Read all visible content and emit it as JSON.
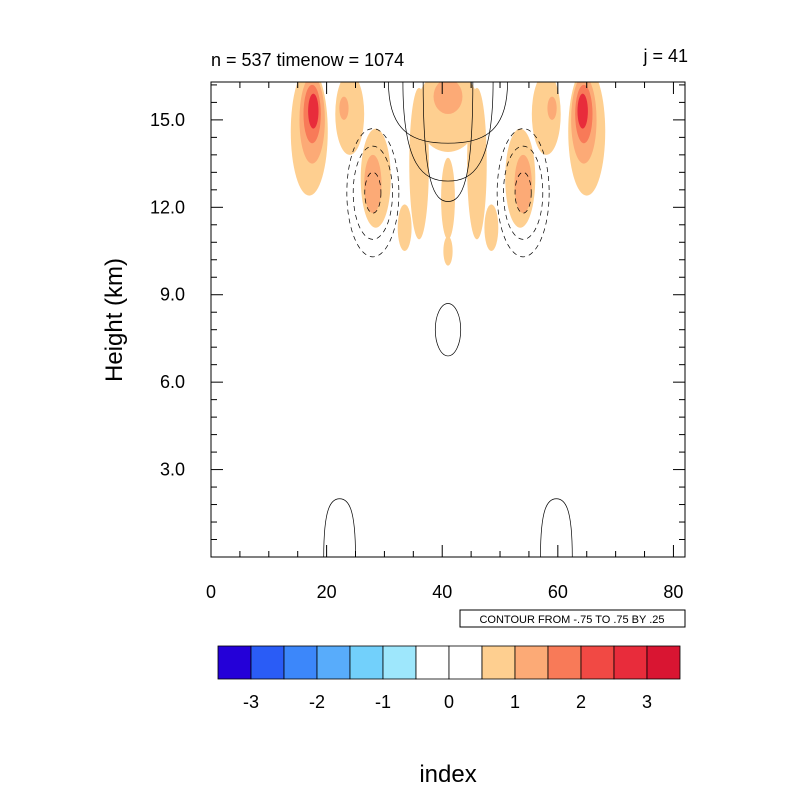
{
  "chart_data": {
    "type": "contour",
    "title_left": "n = 537 timenow = 1074",
    "title_right": "j = 41",
    "ylabel": "Height (km)",
    "xlabel": "index",
    "xlim": [
      0,
      82
    ],
    "ylim": [
      0,
      16.3
    ],
    "x_ticks": [
      0,
      20,
      40,
      60,
      80
    ],
    "x_tick_labels": [
      "0",
      "20",
      "40",
      "60",
      "80"
    ],
    "y_ticks": [
      3.0,
      6.0,
      9.0,
      12.0,
      15.0
    ],
    "y_tick_labels": [
      "3.0",
      "6.0",
      "9.0",
      "12.0",
      "15.0"
    ],
    "contour_note": "CONTOUR FROM -.75 TO .75 BY .25",
    "colorbar": {
      "colors": [
        "#2400d8",
        "#2a5cf6",
        "#3c87fa",
        "#58acfb",
        "#72d0fb",
        "#9ee7fc",
        "#ffffff",
        "#ffffff",
        "#fecf90",
        "#fcaa76",
        "#f87a58",
        "#f14944",
        "#e82c3b",
        "#d91532"
      ],
      "labels": [
        "-3",
        "-2",
        "-1",
        "0",
        "1",
        "2",
        "3"
      ]
    },
    "filled_regions": [
      {
        "level": 1,
        "color": "#fecf90",
        "shape": "ellipse",
        "cx": 17,
        "cy": 14.6,
        "rx": 3.2,
        "ry": 2.2
      },
      {
        "level": 1,
        "color": "#fecf90",
        "shape": "ellipse",
        "cx": 65,
        "cy": 14.6,
        "rx": 3.2,
        "ry": 2.2
      },
      {
        "level": 1,
        "color": "#fecf90",
        "shape": "ellipse",
        "cx": 24,
        "cy": 15.2,
        "rx": 2.5,
        "ry": 1.4
      },
      {
        "level": 1,
        "color": "#fecf90",
        "shape": "ellipse",
        "cx": 58,
        "cy": 15.2,
        "rx": 2.5,
        "ry": 1.4
      },
      {
        "level": 1,
        "color": "#fecf90",
        "shape": "ellipse",
        "cx": 28.5,
        "cy": 13.0,
        "rx": 2.6,
        "ry": 1.7
      },
      {
        "level": 1,
        "color": "#fecf90",
        "shape": "ellipse",
        "cx": 53.5,
        "cy": 13.0,
        "rx": 2.6,
        "ry": 1.7
      },
      {
        "level": 1,
        "color": "#fecf90",
        "shape": "ellipse",
        "cx": 36,
        "cy": 13.5,
        "rx": 1.7,
        "ry": 2.6
      },
      {
        "level": 1,
        "color": "#fecf90",
        "shape": "ellipse",
        "cx": 46,
        "cy": 13.5,
        "rx": 1.7,
        "ry": 2.6
      },
      {
        "level": 1,
        "color": "#fecf90",
        "shape": "ellipse",
        "cx": 41,
        "cy": 15.3,
        "rx": 5.5,
        "ry": 1.4
      },
      {
        "level": 1,
        "color": "#fecf90",
        "shape": "ellipse",
        "cx": 41,
        "cy": 12.3,
        "rx": 1.2,
        "ry": 1.4
      },
      {
        "level": 1,
        "color": "#fecf90",
        "shape": "ellipse",
        "cx": 41,
        "cy": 10.5,
        "rx": 0.8,
        "ry": 0.5
      },
      {
        "level": 1,
        "color": "#fecf90",
        "shape": "ellipse",
        "cx": 33.5,
        "cy": 11.3,
        "rx": 1.2,
        "ry": 0.8
      },
      {
        "level": 1,
        "color": "#fecf90",
        "shape": "ellipse",
        "cx": 48.5,
        "cy": 11.3,
        "rx": 1.2,
        "ry": 0.8
      },
      {
        "level": 2,
        "color": "#fcaa76",
        "shape": "ellipse",
        "cx": 17.5,
        "cy": 15.0,
        "rx": 2.2,
        "ry": 1.5
      },
      {
        "level": 2,
        "color": "#fcaa76",
        "shape": "ellipse",
        "cx": 64.5,
        "cy": 15.0,
        "rx": 2.2,
        "ry": 1.5
      },
      {
        "level": 2,
        "color": "#fcaa76",
        "shape": "ellipse",
        "cx": 28,
        "cy": 12.8,
        "rx": 1.5,
        "ry": 1.0
      },
      {
        "level": 2,
        "color": "#fcaa76",
        "shape": "ellipse",
        "cx": 54,
        "cy": 12.8,
        "rx": 1.5,
        "ry": 1.0
      },
      {
        "level": 2,
        "color": "#fcaa76",
        "shape": "ellipse",
        "cx": 41,
        "cy": 15.8,
        "rx": 2.5,
        "ry": 0.6
      },
      {
        "level": 2,
        "color": "#fcaa76",
        "shape": "ellipse",
        "cx": 23,
        "cy": 15.4,
        "rx": 0.8,
        "ry": 0.4
      },
      {
        "level": 2,
        "color": "#fcaa76",
        "shape": "ellipse",
        "cx": 59,
        "cy": 15.4,
        "rx": 0.8,
        "ry": 0.4
      },
      {
        "level": 3,
        "color": "#f87a58",
        "shape": "ellipse",
        "cx": 17.5,
        "cy": 15.2,
        "rx": 1.5,
        "ry": 1.0
      },
      {
        "level": 3,
        "color": "#f87a58",
        "shape": "ellipse",
        "cx": 64.5,
        "cy": 15.2,
        "rx": 1.5,
        "ry": 1.0
      },
      {
        "level": 4,
        "color": "#e82c3b",
        "shape": "ellipse",
        "cx": 17.7,
        "cy": 15.3,
        "rx": 0.9,
        "ry": 0.6
      },
      {
        "level": 4,
        "color": "#e82c3b",
        "shape": "ellipse",
        "cx": 64.3,
        "cy": 15.3,
        "rx": 0.9,
        "ry": 0.6
      }
    ],
    "contour_lines": [
      {
        "style": "dashed",
        "shape": "ellipse",
        "cx": 28,
        "cy": 12.5,
        "rx": 4.5,
        "ry": 2.2
      },
      {
        "style": "dashed",
        "shape": "ellipse",
        "cx": 28,
        "cy": 12.5,
        "rx": 3.4,
        "ry": 1.6
      },
      {
        "style": "dashed",
        "shape": "ellipse",
        "cx": 28,
        "cy": 12.5,
        "rx": 1.4,
        "ry": 0.7
      },
      {
        "style": "dashed",
        "shape": "ellipse",
        "cx": 54,
        "cy": 12.5,
        "rx": 4.5,
        "ry": 2.2
      },
      {
        "style": "dashed",
        "shape": "ellipse",
        "cx": 54,
        "cy": 12.5,
        "rx": 3.4,
        "ry": 1.6
      },
      {
        "style": "dashed",
        "shape": "ellipse",
        "cx": 54,
        "cy": 12.5,
        "rx": 1.4,
        "ry": 0.7
      },
      {
        "style": "solid",
        "shape": "ellipse",
        "cx": 41,
        "cy": 7.8,
        "rx": 2.2,
        "ry": 0.9
      },
      {
        "style": "solid",
        "shape": "arch",
        "x0": 36.7,
        "x1": 45.3,
        "ypeak": 12.2,
        "ytop": 16.3
      },
      {
        "style": "solid",
        "shape": "arch",
        "x0": 33.2,
        "x1": 48.8,
        "ypeak": 12.9,
        "ytop": 16.3
      },
      {
        "style": "solid",
        "shape": "arch",
        "x0": 30.7,
        "x1": 51.3,
        "ypeak": 14.2,
        "ytop": 16.3
      },
      {
        "style": "solid",
        "shape": "arch",
        "x0": 19.5,
        "x1": 25.0,
        "ypeak": 2.0,
        "ytop": 0
      },
      {
        "style": "solid",
        "shape": "arch",
        "x0": 57.0,
        "x1": 62.5,
        "ypeak": 2.0,
        "ytop": 0
      }
    ]
  }
}
